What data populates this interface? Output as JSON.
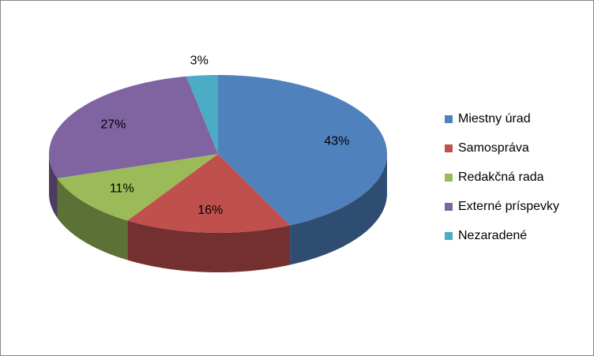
{
  "chart_data": {
    "type": "pie",
    "categories": [
      "Miestny úrad",
      "Samospráva",
      "Redakčná rada",
      "Externé príspevky",
      "Nezaradené"
    ],
    "values": [
      43,
      16,
      11,
      27,
      3
    ],
    "value_labels": [
      "43%",
      "16%",
      "11%",
      "27%",
      "3%"
    ],
    "colors": [
      "#4f81bd",
      "#c0504d",
      "#9bbb59",
      "#8064a2",
      "#4bacc6"
    ],
    "legend": "right"
  }
}
